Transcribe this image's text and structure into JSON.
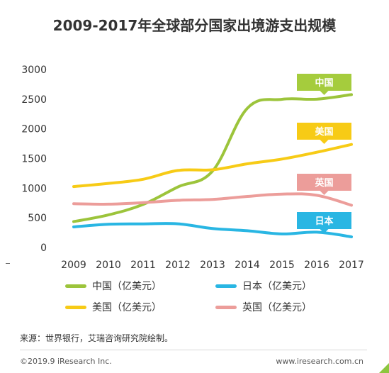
{
  "chart_data": {
    "type": "line",
    "title": "2009-2017年全球部分国家出境游支出规模",
    "x": [
      "2009",
      "2010",
      "2011",
      "2012",
      "2013",
      "2014",
      "2015",
      "2016",
      "2017"
    ],
    "ylim": [
      0,
      3000
    ],
    "yticks": [
      "0",
      "500",
      "1000",
      "1500",
      "2000",
      "2500",
      "3000"
    ],
    "grid": false,
    "legend_position": "bottom",
    "series": [
      {
        "name": "中国（亿美元）",
        "callout": "中国",
        "color": "#9cc43b",
        "callout_color": "#a5cc3d",
        "values": [
          437,
          549,
          726,
          1020,
          1289,
          2346,
          2498,
          2500,
          2577
        ]
      },
      {
        "name": "日本（亿美元）",
        "callout": "日本",
        "color": "#29b6e3",
        "callout_color": "#29b6e3",
        "values": [
          347,
          392,
          398,
          399,
          320,
          283,
          229,
          258,
          180
        ]
      },
      {
        "name": "美国（亿美元）",
        "callout": "美国",
        "color": "#f7cb16",
        "callout_color": "#f7cb16",
        "values": [
          1027,
          1080,
          1150,
          1298,
          1310,
          1410,
          1490,
          1605,
          1737
        ]
      },
      {
        "name": "英国（亿美元）",
        "callout": "英国",
        "color": "#ec9d9a",
        "callout_color": "#ec9d9a",
        "values": [
          738,
          730,
          756,
          795,
          810,
          860,
          900,
          880,
          712
        ]
      }
    ]
  },
  "source": "来源：世界银行，艾瑞咨询研究院绘制。",
  "footer": {
    "copyright": "©2019.9 iResearch Inc.",
    "url": "www.iresearch.com.cn"
  }
}
